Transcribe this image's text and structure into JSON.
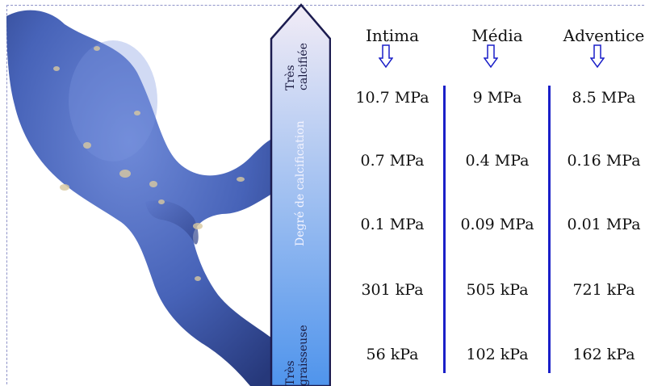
{
  "scale": {
    "title": "Degré de calcification",
    "top_label_lines": [
      "Très",
      "calcifiée"
    ],
    "bottom_label_lines": [
      "Très",
      "graisseuse"
    ],
    "colors": {
      "top": "#f2ecf6",
      "bottom": "#4f94ec",
      "outline": "#1c1c50"
    }
  },
  "columns": [
    {
      "header": "Intima",
      "values": [
        "10.7 MPa",
        "0.7 MPa",
        "0.1 MPa",
        "301 kPa",
        "56 kPa"
      ]
    },
    {
      "header": "Média",
      "values": [
        "9 MPa",
        "0.4 MPa",
        "0.09 MPa",
        "505 kPa",
        "102 kPa"
      ]
    },
    {
      "header": "Adventice",
      "values": [
        "8.5 MPa",
        "0.16 MPa",
        "0.01 MPa",
        "721 kPa",
        "162 kPa"
      ]
    }
  ],
  "colors": {
    "separator": "#1a1fc8",
    "arrow": "#1a1fc8",
    "vessel": "#4763b8"
  }
}
